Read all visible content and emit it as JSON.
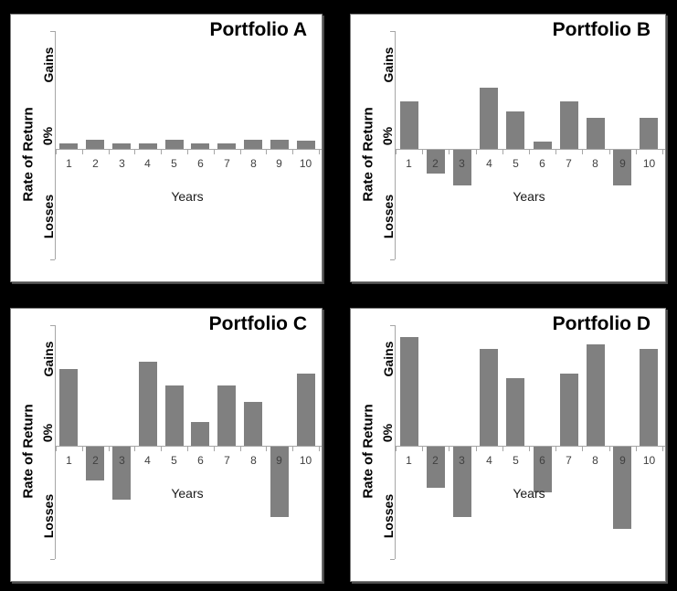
{
  "window": {
    "background_color": "#000000"
  },
  "style": {
    "panel_color": "#ffffff",
    "panel_border_color": "#7f7f7f",
    "bar_color": "#808080",
    "axis_color": "#a6a6a6",
    "category_label_color": "#404040",
    "text_color": "#000000"
  },
  "chart_data": [
    {
      "type": "bar",
      "title": "Portfolio A",
      "xlabel": "Years",
      "ylabel": "Rate of Return",
      "y_axis_annotations": {
        "gains": "Gains",
        "zero": "0%",
        "losses": "Losses"
      },
      "categories": [
        "1",
        "2",
        "3",
        "4",
        "5",
        "6",
        "7",
        "8",
        "9",
        "10"
      ],
      "values": [
        1.2,
        2,
        1.2,
        1.2,
        2,
        1.2,
        1.2,
        2,
        2,
        1.8
      ],
      "ylim": [
        -25,
        25
      ],
      "grid": false,
      "legend": false
    },
    {
      "type": "bar",
      "title": "Portfolio B",
      "xlabel": "Years",
      "ylabel": "Rate of Return",
      "y_axis_annotations": {
        "gains": "Gains",
        "zero": "0%",
        "losses": "Losses"
      },
      "categories": [
        "1",
        "2",
        "3",
        "4",
        "5",
        "6",
        "7",
        "8",
        "9",
        "10"
      ],
      "values": [
        10,
        -5,
        -7.5,
        13,
        8,
        1.5,
        10,
        6.5,
        -7.5,
        6.5
      ],
      "ylim": [
        -25,
        25
      ],
      "grid": false,
      "legend": false
    },
    {
      "type": "bar",
      "title": "Portfolio C",
      "xlabel": "Years",
      "ylabel": "Rate of Return",
      "y_axis_annotations": {
        "gains": "Gains",
        "zero": "0%",
        "losses": "Losses"
      },
      "categories": [
        "1",
        "2",
        "3",
        "4",
        "5",
        "6",
        "7",
        "8",
        "9",
        "10"
      ],
      "values": [
        16,
        -7,
        -11,
        17.5,
        12.5,
        5,
        12.5,
        9,
        -14.5,
        15
      ],
      "ylim": [
        -25,
        25
      ],
      "grid": false,
      "legend": false
    },
    {
      "type": "bar",
      "title": "Portfolio D",
      "xlabel": "Years",
      "ylabel": "Rate of Return",
      "y_axis_annotations": {
        "gains": "Gains",
        "zero": "0%",
        "losses": "Losses"
      },
      "categories": [
        "1",
        "2",
        "3",
        "4",
        "5",
        "6",
        "7",
        "8",
        "9",
        "10"
      ],
      "values": [
        22.5,
        -8.5,
        -14.5,
        20,
        14,
        -9.5,
        15,
        21,
        -17,
        20
      ],
      "ylim": [
        -25,
        25
      ],
      "grid": false,
      "legend": false
    }
  ]
}
